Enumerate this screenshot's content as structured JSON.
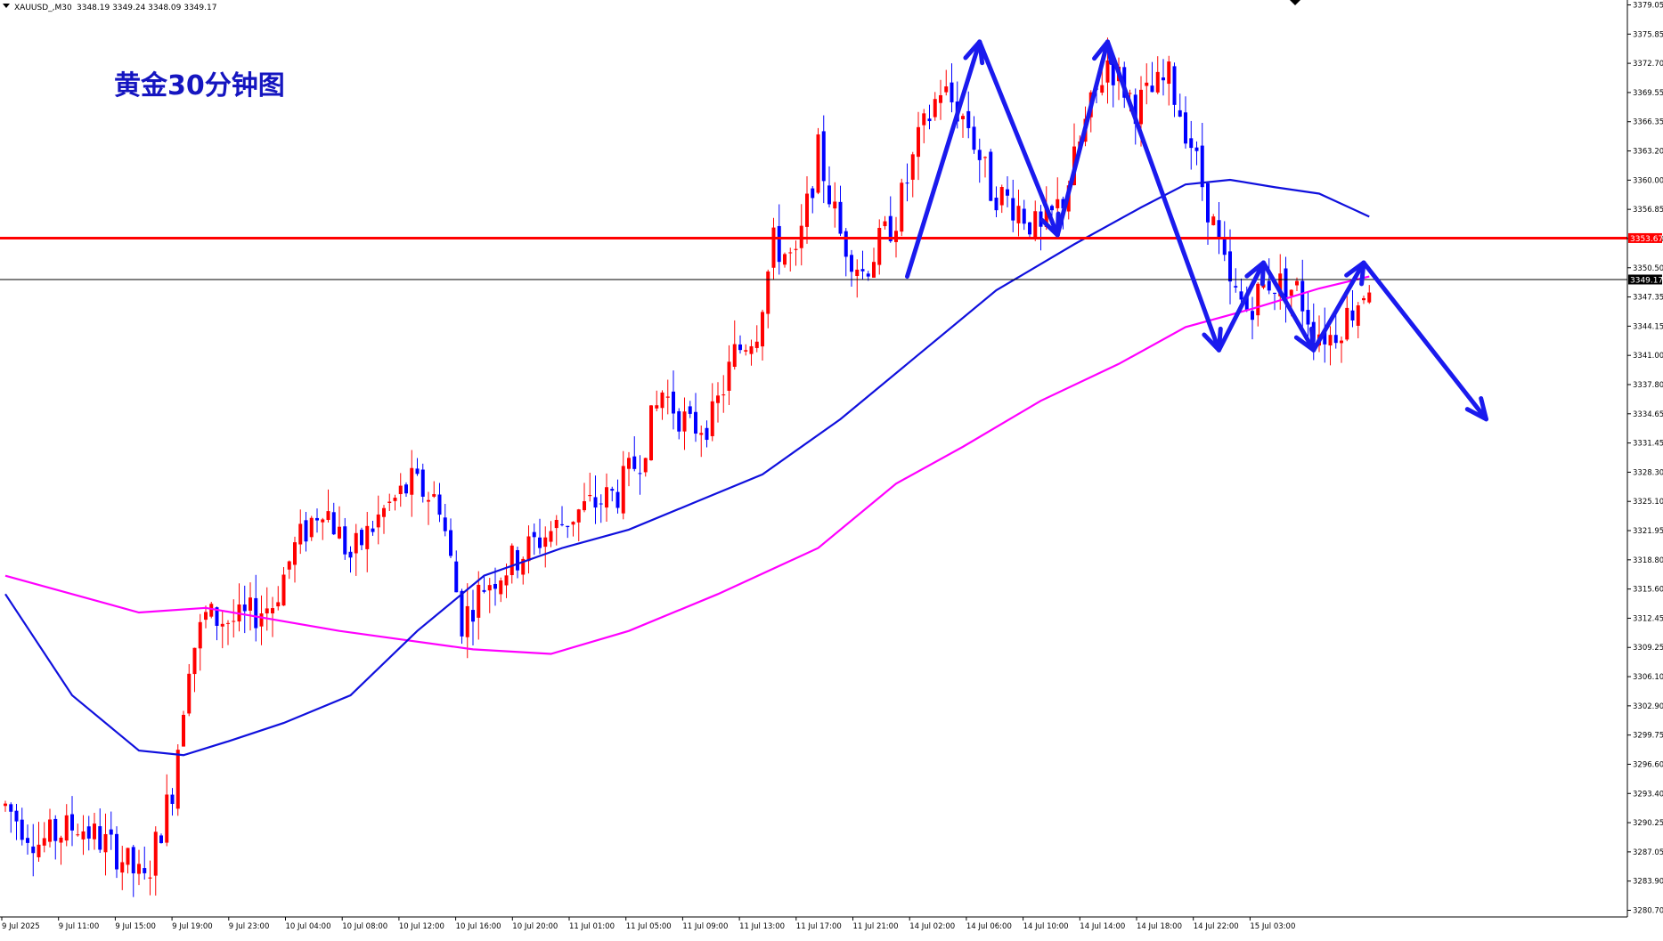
{
  "header": {
    "symbol": "XAUUSD_,M30",
    "ohlc": "3348.19 3349.24 3348.09 3349.17"
  },
  "annotation_title": "黄金30分钟图",
  "price_tags": {
    "resistance": "3353.67",
    "current": "3349.17"
  },
  "colors": {
    "up_candle": "#ff0000",
    "down_candle": "#0000ff",
    "ma_fast": "#1010dd",
    "ma_slow": "#ff00ff",
    "resistance_line": "#ff0000",
    "arrows": "#1a1aee",
    "title": "#1515c0"
  },
  "chart_data": {
    "type": "candlestick",
    "y_ticks": [
      "3379.05",
      "3375.85",
      "3372.70",
      "3369.55",
      "3366.35",
      "3363.20",
      "3360.00",
      "3356.85",
      "3353.70",
      "3350.50",
      "3347.35",
      "3344.15",
      "3341.00",
      "3337.80",
      "3334.65",
      "3331.45",
      "3328.30",
      "3325.10",
      "3321.95",
      "3318.80",
      "3315.60",
      "3312.45",
      "3309.25",
      "3306.10",
      "3302.90",
      "3299.75",
      "3296.60",
      "3293.40",
      "3290.25",
      "3287.05",
      "3283.90",
      "3280.70"
    ],
    "x_ticks": [
      "9 Jul 2025",
      "9 Jul 11:00",
      "9 Jul 15:00",
      "9 Jul 19:00",
      "9 Jul 23:00",
      "10 Jul 04:00",
      "10 Jul 08:00",
      "10 Jul 12:00",
      "10 Jul 16:00",
      "10 Jul 20:00",
      "11 Jul 01:00",
      "11 Jul 05:00",
      "11 Jul 09:00",
      "11 Jul 13:00",
      "11 Jul 17:00",
      "11 Jul 21:00",
      "14 Jul 02:00",
      "14 Jul 06:00",
      "14 Jul 10:00",
      "14 Jul 14:00",
      "14 Jul 18:00",
      "14 Jul 22:00",
      "15 Jul 03:00"
    ],
    "resistance": 3353.67,
    "current": 3349.17,
    "price_path": [
      {
        "t": 0,
        "p": 3292
      },
      {
        "t": 6,
        "p": 3288
      },
      {
        "t": 13,
        "p": 3290
      },
      {
        "t": 20,
        "p": 3287
      },
      {
        "t": 25,
        "p": 3283.5
      },
      {
        "t": 30,
        "p": 3294
      },
      {
        "t": 33,
        "p": 3308
      },
      {
        "t": 36,
        "p": 3312.5
      },
      {
        "t": 42,
        "p": 3312
      },
      {
        "t": 48,
        "p": 3314
      },
      {
        "t": 52,
        "p": 3320
      },
      {
        "t": 57,
        "p": 3325
      },
      {
        "t": 62,
        "p": 3319
      },
      {
        "t": 68,
        "p": 3324
      },
      {
        "t": 73,
        "p": 3327
      },
      {
        "t": 78,
        "p": 3325
      },
      {
        "t": 82,
        "p": 3312
      },
      {
        "t": 86,
        "p": 3316
      },
      {
        "t": 90,
        "p": 3318
      },
      {
        "t": 96,
        "p": 3321
      },
      {
        "t": 103,
        "p": 3324
      },
      {
        "t": 110,
        "p": 3326
      },
      {
        "t": 114,
        "p": 3330
      },
      {
        "t": 118,
        "p": 3337
      },
      {
        "t": 123,
        "p": 3333
      },
      {
        "t": 127,
        "p": 3334
      },
      {
        "t": 131,
        "p": 3341
      },
      {
        "t": 135,
        "p": 3344
      },
      {
        "t": 138,
        "p": 3353
      },
      {
        "t": 142,
        "p": 3351
      },
      {
        "t": 146,
        "p": 3363
      },
      {
        "t": 150,
        "p": 3354
      },
      {
        "t": 154,
        "p": 3350
      },
      {
        "t": 160,
        "p": 3356
      },
      {
        "t": 164,
        "p": 3364
      },
      {
        "t": 168,
        "p": 3370
      },
      {
        "t": 173,
        "p": 3366
      },
      {
        "t": 177,
        "p": 3359
      },
      {
        "t": 182,
        "p": 3357
      },
      {
        "t": 186,
        "p": 3354
      },
      {
        "t": 190,
        "p": 3358
      },
      {
        "t": 194,
        "p": 3366
      },
      {
        "t": 198,
        "p": 3373
      },
      {
        "t": 203,
        "p": 3368
      },
      {
        "t": 209,
        "p": 3371
      },
      {
        "t": 213,
        "p": 3364
      },
      {
        "t": 217,
        "p": 3355
      },
      {
        "t": 220,
        "p": 3348
      },
      {
        "t": 223,
        "p": 3346
      },
      {
        "t": 227,
        "p": 3349
      },
      {
        "t": 232,
        "p": 3348
      },
      {
        "t": 235,
        "p": 3344
      },
      {
        "t": 238,
        "p": 3343
      },
      {
        "t": 242,
        "p": 3346
      },
      {
        "t": 245,
        "p": 3349
      }
    ],
    "ma_fast": [
      {
        "t": 0,
        "p": 3315
      },
      {
        "t": 12,
        "p": 3304
      },
      {
        "t": 24,
        "p": 3298
      },
      {
        "t": 32,
        "p": 3297.5
      },
      {
        "t": 40,
        "p": 3299
      },
      {
        "t": 50,
        "p": 3301
      },
      {
        "t": 62,
        "p": 3304
      },
      {
        "t": 74,
        "p": 3311
      },
      {
        "t": 86,
        "p": 3317
      },
      {
        "t": 100,
        "p": 3320
      },
      {
        "t": 112,
        "p": 3322
      },
      {
        "t": 124,
        "p": 3325
      },
      {
        "t": 136,
        "p": 3328
      },
      {
        "t": 150,
        "p": 3334
      },
      {
        "t": 164,
        "p": 3341
      },
      {
        "t": 178,
        "p": 3348
      },
      {
        "t": 192,
        "p": 3353
      },
      {
        "t": 204,
        "p": 3357
      },
      {
        "t": 212,
        "p": 3359.5
      },
      {
        "t": 220,
        "p": 3360
      },
      {
        "t": 228,
        "p": 3359.2
      },
      {
        "t": 236,
        "p": 3358.5
      },
      {
        "t": 245,
        "p": 3356
      }
    ],
    "ma_slow": [
      {
        "t": 0,
        "p": 3317
      },
      {
        "t": 24,
        "p": 3313
      },
      {
        "t": 36,
        "p": 3313.5
      },
      {
        "t": 60,
        "p": 3311
      },
      {
        "t": 84,
        "p": 3309
      },
      {
        "t": 98,
        "p": 3308.5
      },
      {
        "t": 112,
        "p": 3311
      },
      {
        "t": 128,
        "p": 3315
      },
      {
        "t": 146,
        "p": 3320
      },
      {
        "t": 160,
        "p": 3327
      },
      {
        "t": 172,
        "p": 3331
      },
      {
        "t": 186,
        "p": 3336
      },
      {
        "t": 200,
        "p": 3340
      },
      {
        "t": 212,
        "p": 3344
      },
      {
        "t": 224,
        "p": 3346
      },
      {
        "t": 236,
        "p": 3348.2
      },
      {
        "t": 245,
        "p": 3349.5
      }
    ],
    "arrows": [
      [
        [
          162,
          3349.5
        ],
        [
          175,
          3375
        ]
      ],
      [
        [
          175,
          3375
        ],
        [
          189,
          3354
        ]
      ],
      [
        [
          189,
          3354
        ],
        [
          198,
          3375
        ]
      ],
      [
        [
          198,
          3375
        ],
        [
          218,
          3341.5
        ]
      ],
      [
        [
          218,
          3341.5
        ],
        [
          226,
          3351
        ]
      ],
      [
        [
          226,
          3351
        ],
        [
          235,
          3341.5
        ]
      ],
      [
        [
          235,
          3341.5
        ],
        [
          244,
          3351
        ]
      ],
      [
        [
          244,
          3351
        ],
        [
          266,
          3334
        ]
      ]
    ]
  }
}
